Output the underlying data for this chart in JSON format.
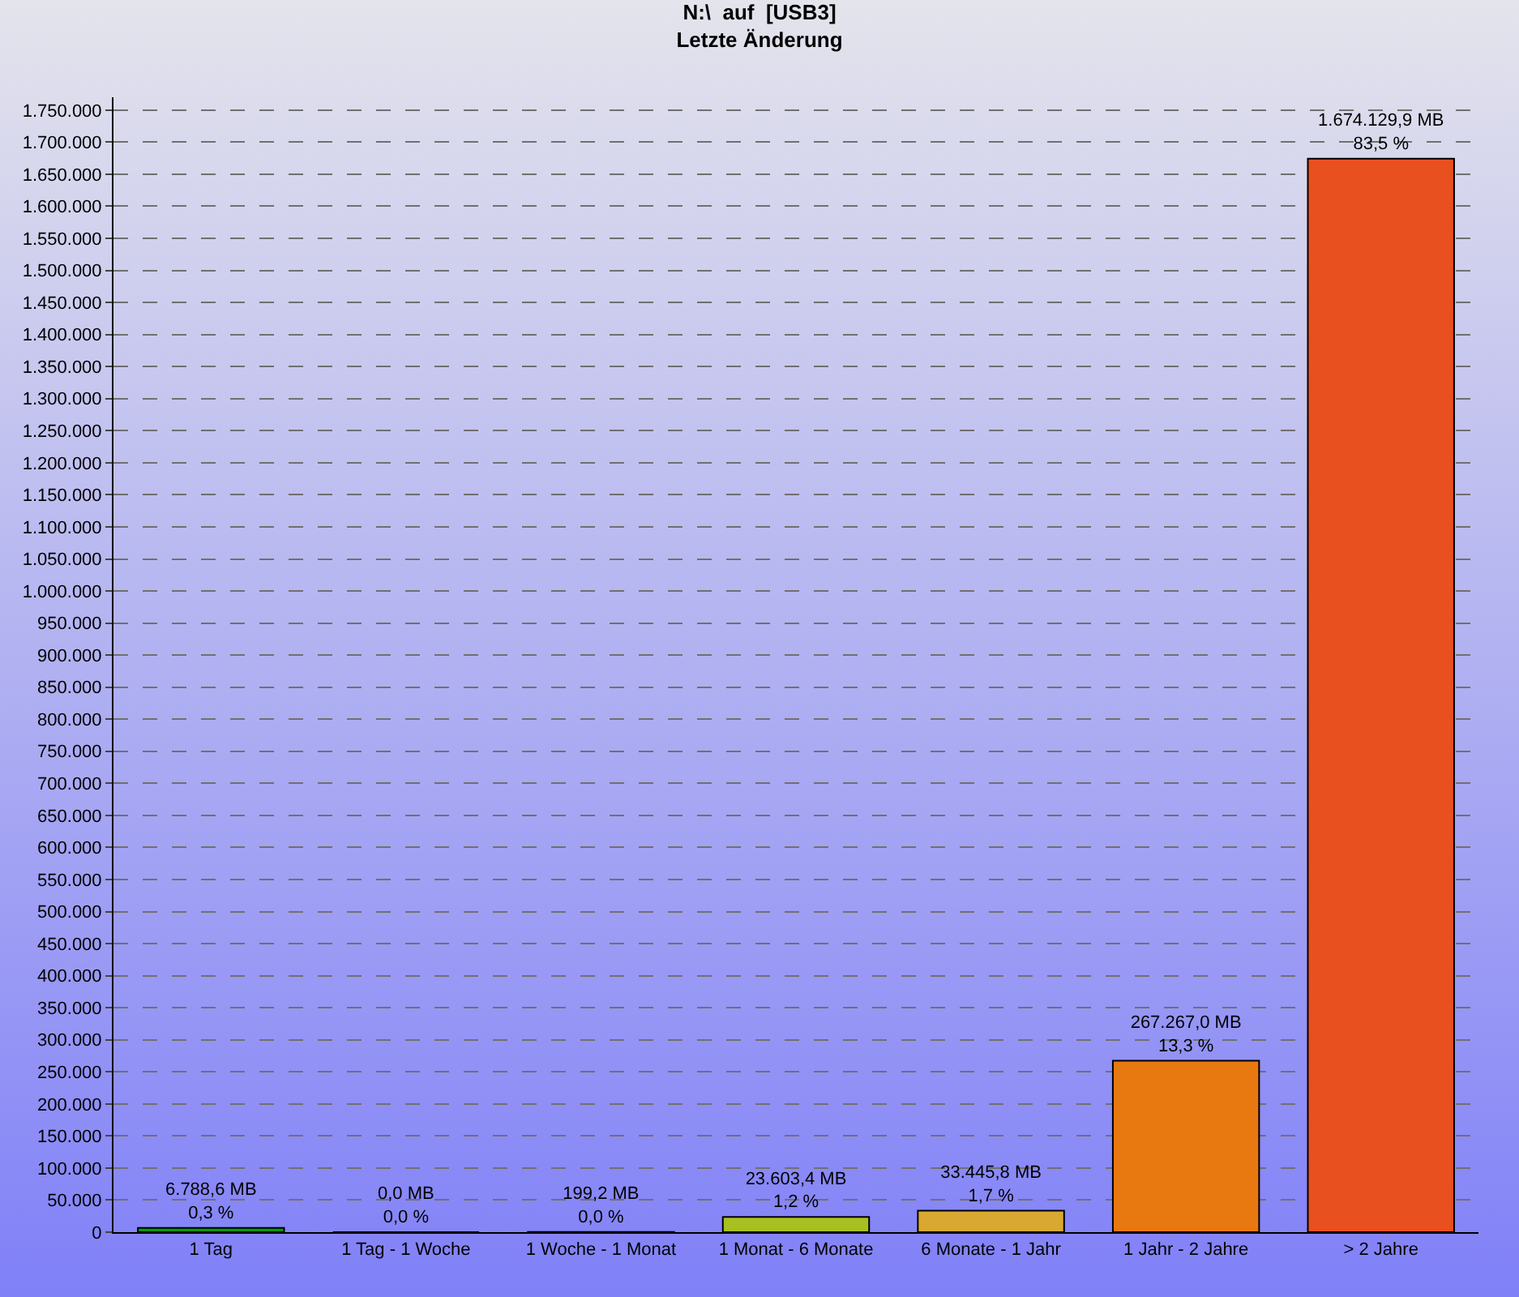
{
  "chart_data": {
    "type": "bar",
    "title": "N:\\  auf  [USB3]\nLetzte Änderung",
    "categories": [
      "1 Tag",
      "1 Tag - 1 Woche",
      "1 Woche - 1 Monat",
      "1 Monat - 6 Monate",
      "6 Monate - 1 Jahr",
      "1 Jahr - 2 Jahre",
      "> 2 Jahre"
    ],
    "values": [
      6788.6,
      0,
      199.2,
      23603.4,
      33445.8,
      267267.0,
      1674129.9
    ],
    "value_labels": [
      "6.788,6 MB\n0,3 %",
      "0,0 MB\n0,0 %",
      "199,2 MB\n0,0 %",
      "23.603,4 MB\n1,2 %",
      "33.445,8 MB\n1,7 %",
      "267.267,0 MB\n13,3 %",
      "1.674.129,9 MB\n83,5 %"
    ],
    "colors": [
      "#0a9a0a",
      "#1a9a1a",
      "#4c8c00",
      "#a8c020",
      "#d8a830",
      "#e87810",
      "#e85020"
    ],
    "ylim": [
      0,
      1770000
    ],
    "yticks": [
      0,
      {
        "value": 50000,
        "label": "50.000"
      },
      {
        "value": 100000,
        "label": "100.000"
      },
      {
        "value": 150000,
        "label": "150.000"
      },
      {
        "value": 200000,
        "label": "200.000"
      },
      {
        "value": 250000,
        "label": "250.000"
      },
      {
        "value": 300000,
        "label": "300.000"
      },
      {
        "value": 350000,
        "label": "350.000"
      },
      {
        "value": 400000,
        "label": "400.000"
      },
      {
        "value": 450000,
        "label": "450.000"
      },
      {
        "value": 500000,
        "label": "500.000"
      },
      {
        "value": 550000,
        "label": "550.000"
      },
      {
        "value": 600000,
        "label": "600.000"
      },
      {
        "value": 650000,
        "label": "650.000"
      },
      {
        "value": 700000,
        "label": "700.000"
      },
      {
        "value": 750000,
        "label": "750.000"
      },
      {
        "value": 800000,
        "label": "800.000"
      },
      {
        "value": 850000,
        "label": "850.000"
      },
      {
        "value": 900000,
        "label": "900.000"
      },
      {
        "value": 950000,
        "label": "950.000"
      },
      {
        "value": 1000000,
        "label": "1.000.000"
      },
      {
        "value": 1050000,
        "label": "1.050.000"
      },
      {
        "value": 1100000,
        "label": "1.100.000"
      },
      {
        "value": 1150000,
        "label": "1.150.000"
      },
      {
        "value": 1200000,
        "label": "1.200.000"
      },
      {
        "value": 1250000,
        "label": "1.250.000"
      },
      {
        "value": 1300000,
        "label": "1.300.000"
      },
      {
        "value": 1350000,
        "label": "1.350.000"
      },
      {
        "value": 1400000,
        "label": "1.400.000"
      },
      {
        "value": 1450000,
        "label": "1.450.000"
      },
      {
        "value": 1500000,
        "label": "1.500.000"
      },
      {
        "value": 1550000,
        "label": "1.550.000"
      },
      {
        "value": 1600000,
        "label": "1.600.000"
      },
      {
        "value": 1650000,
        "label": "1.650.000"
      },
      {
        "value": 1700000,
        "label": "1.700.000"
      },
      {
        "value": 1750000,
        "label": "1.750.000"
      }
    ],
    "grid": "y"
  }
}
